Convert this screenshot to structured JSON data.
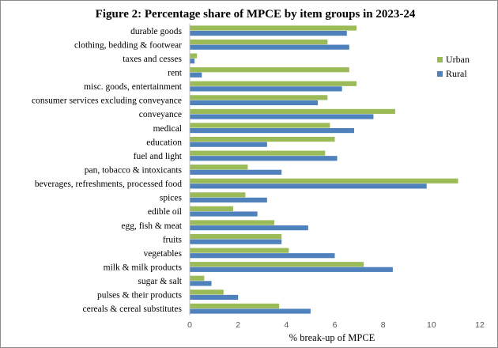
{
  "chart_data": {
    "type": "bar",
    "orientation": "horizontal",
    "title": "Figure 2: Percentage share of MPCE by item groups in 2023-24",
    "xlabel": "% break-up of MPCE",
    "ylabel": "",
    "xlim": [
      0,
      12
    ],
    "xticks": [
      "0",
      "2",
      "4",
      "6",
      "8",
      "10",
      "12"
    ],
    "grid": false,
    "legend_position": "right",
    "categories": [
      "durable goods",
      "clothing, bedding & footwear",
      "taxes and cesses",
      "rent",
      "misc. goods, entertainment",
      "consumer services excluding conveyance",
      "conveyance",
      "medical",
      "education",
      "fuel and light",
      "pan, tobacco & intoxicants",
      "beverages, refreshments, processed food",
      "spices",
      "edible oil",
      "egg, fish & meat",
      "fruits",
      "vegetables",
      "milk & milk products",
      "sugar & salt",
      "pulses & their products",
      "cereals & cereal substitutes"
    ],
    "series": [
      {
        "name": "Urban",
        "color": "#9bbb59",
        "values": [
          6.9,
          5.7,
          0.3,
          6.6,
          6.9,
          5.7,
          8.5,
          5.8,
          6.0,
          5.6,
          2.4,
          11.1,
          2.3,
          1.8,
          3.5,
          3.8,
          4.1,
          7.2,
          0.6,
          1.4,
          3.7
        ]
      },
      {
        "name": "Rural",
        "color": "#4f81bd",
        "values": [
          6.5,
          6.6,
          0.2,
          0.5,
          6.3,
          5.3,
          7.6,
          6.8,
          3.2,
          6.1,
          3.8,
          9.8,
          3.2,
          2.8,
          4.9,
          3.8,
          6.0,
          8.4,
          0.9,
          2.0,
          5.0
        ]
      }
    ]
  }
}
